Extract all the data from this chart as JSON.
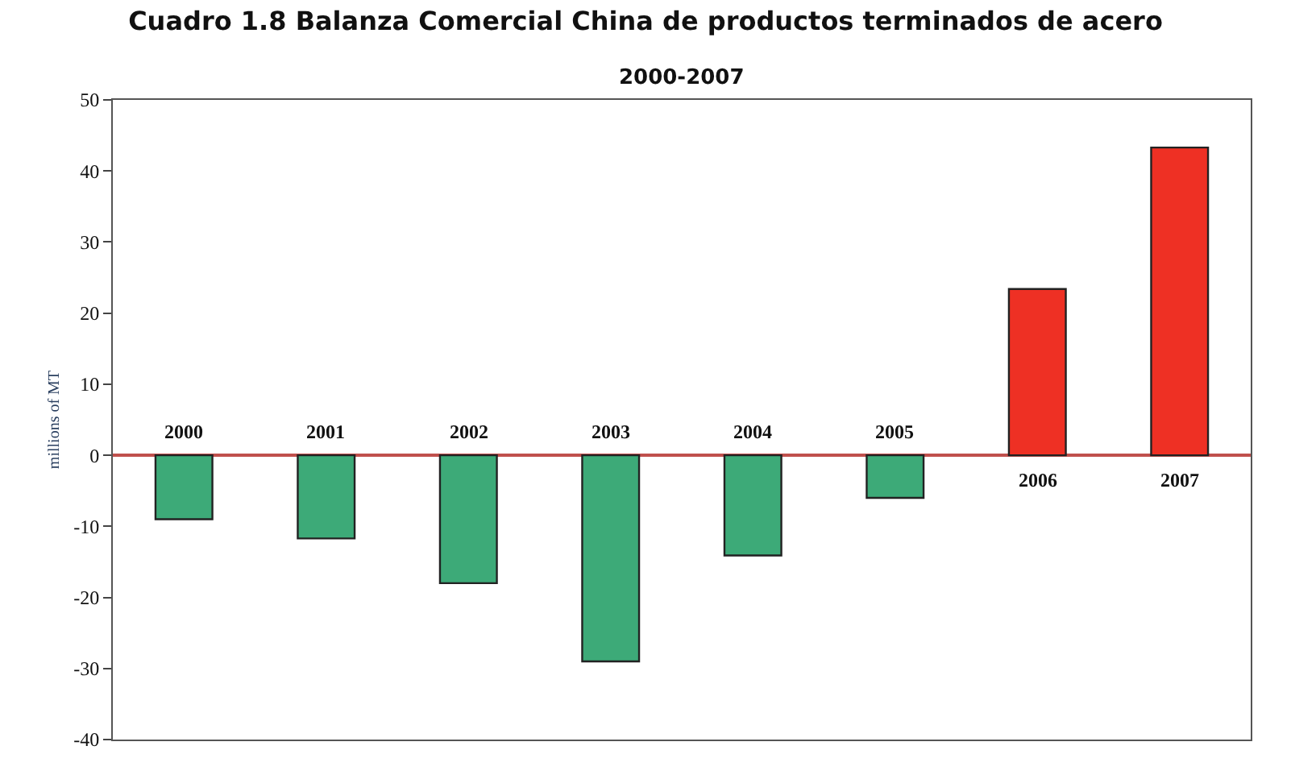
{
  "chart_data": {
    "type": "bar",
    "title": "Cuadro 1.8 Balanza Comercial China de productos terminados de acero",
    "subtitle": "2000-2007",
    "ylabel": "millions of MT",
    "categories": [
      "2000",
      "2001",
      "2002",
      "2003",
      "2004",
      "2005",
      "2006",
      "2007"
    ],
    "values": [
      -9.0,
      -11.7,
      -18.0,
      -29.0,
      -14.1,
      -6.0,
      23.4,
      43.3
    ],
    "colors": [
      "#3daa78",
      "#3daa78",
      "#3daa78",
      "#3daa78",
      "#3daa78",
      "#3daa78",
      "#ee3024",
      "#ee3024"
    ],
    "ylim": [
      -40,
      50
    ],
    "yticks": [
      -40,
      -30,
      -20,
      -10,
      0,
      10,
      20,
      30,
      40,
      50
    ]
  }
}
